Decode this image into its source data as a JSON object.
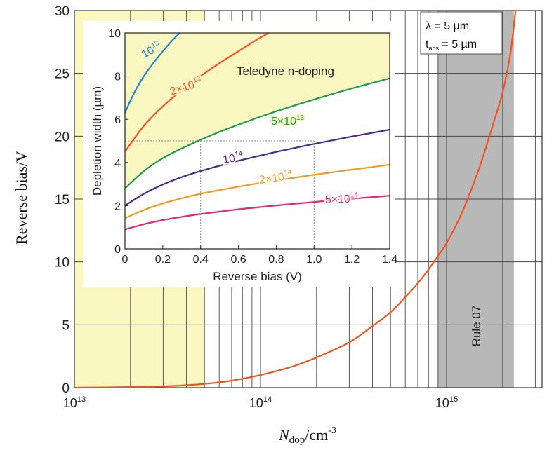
{
  "chart_data": [
    {
      "type": "line",
      "xlabel_main": "N",
      "xlabel_sub": "dop",
      "xlabel_unit": "/cm",
      "xlabel_sup": "-3",
      "ylabel": "Reverse bias/V",
      "xscale": "log",
      "xlim": [
        10000000000000.0,
        3500000000000000.0
      ],
      "ylim": [
        0,
        30
      ],
      "x_tick_labels": [
        {
          "x": 10000000000000.0,
          "base": "10",
          "exp": "13"
        },
        {
          "x": 100000000000000.0,
          "base": "10",
          "exp": "14"
        },
        {
          "x": 1000000000000000.0,
          "base": "10",
          "exp": "15"
        }
      ],
      "y_ticks": [
        0,
        5,
        10,
        15,
        20,
        25,
        30
      ],
      "grid": true,
      "legend_box": [
        "λ = 5 µm",
        "t",
        "abs",
        " = 5 µm"
      ],
      "shaded_regions": [
        {
          "label": "",
          "x_from": 10000000000000.0,
          "x_to": 50000000000000.0,
          "color": "#fbf7c0"
        },
        {
          "label": "Rule 07",
          "x_from": 900000000000000.0,
          "x_to": 2300000000000000.0,
          "color": "#b8b8b8"
        }
      ],
      "series": [
        {
          "color": "#f4511e",
          "x": [
            10000000000000.0,
            20000000000000.0,
            30000000000000.0,
            50000000000000.0,
            70000000000000.0,
            100000000000000.0,
            150000000000000.0,
            200000000000000.0,
            300000000000000.0,
            400000000000000.0,
            500000000000000.0,
            600000000000000.0,
            700000000000000.0,
            800000000000000.0,
            900000000000000.0,
            1000000000000000.0,
            1200000000000000.0,
            1500000000000000.0,
            1800000000000000.0,
            2000000000000000.0,
            2200000000000000.0,
            2350000000000000.0
          ],
          "y": [
            0.0,
            0.05,
            0.1,
            0.3,
            0.55,
            1.0,
            1.7,
            2.4,
            3.6,
            4.9,
            6.0,
            7.2,
            8.3,
            9.4,
            10.5,
            11.5,
            13.8,
            17.5,
            21.2,
            23.5,
            26.5,
            30
          ]
        }
      ]
    },
    {
      "type": "line",
      "title": "Teledyne n-doping",
      "xlabel": "Reverse bias (V)",
      "ylabel": "Depletion width (µm)",
      "xlim": [
        0,
        1.4
      ],
      "ylim": [
        0,
        10
      ],
      "x_ticks": [
        "0",
        "0.2",
        "0.4",
        "0.6",
        "0.8",
        "1.0",
        "1.2",
        "1.4"
      ],
      "y_ticks": [
        "0",
        "2",
        "4",
        "6",
        "8",
        "10"
      ],
      "reference_lines": {
        "x": [
          0.4,
          1.0
        ],
        "y": [
          5
        ]
      },
      "series": [
        {
          "name_base": "10",
          "name_exp": "13",
          "color": "#1e88c8",
          "x": [
            0,
            0.05,
            0.1,
            0.15,
            0.2,
            0.25,
            0.29
          ],
          "y": [
            6.3,
            7.25,
            8.0,
            8.6,
            9.15,
            9.65,
            10.0
          ]
        },
        {
          "name_base": "2×10",
          "name_exp": "13",
          "color": "#f4511e",
          "x": [
            0,
            0.1,
            0.2,
            0.3,
            0.4,
            0.5,
            0.6,
            0.7,
            0.76
          ],
          "y": [
            4.5,
            5.7,
            6.6,
            7.35,
            8.0,
            8.6,
            9.15,
            9.7,
            10.0
          ]
        },
        {
          "name_base": "5×10",
          "name_exp": "13",
          "color": "#1a9e4a",
          "x": [
            0,
            0.1,
            0.2,
            0.3,
            0.4,
            0.5,
            0.6,
            0.7,
            0.8,
            0.9,
            1.0,
            1.1,
            1.2,
            1.3,
            1.4
          ],
          "y": [
            2.8,
            3.6,
            4.2,
            4.65,
            5.05,
            5.42,
            5.75,
            6.07,
            6.37,
            6.65,
            6.92,
            7.18,
            7.43,
            7.67,
            7.9
          ]
        },
        {
          "name_base": "10",
          "name_exp": "14",
          "color": "#4b2a8c",
          "x": [
            0,
            0.1,
            0.2,
            0.3,
            0.4,
            0.5,
            0.6,
            0.7,
            0.8,
            0.9,
            1.0,
            1.1,
            1.2,
            1.3,
            1.4
          ],
          "y": [
            2.0,
            2.55,
            2.98,
            3.32,
            3.6,
            3.85,
            4.08,
            4.29,
            4.49,
            4.68,
            4.86,
            5.03,
            5.2,
            5.36,
            5.52
          ]
        },
        {
          "name_base": "2×10",
          "name_exp": "14",
          "color": "#f59a1c",
          "x": [
            0,
            0.1,
            0.2,
            0.3,
            0.4,
            0.5,
            0.6,
            0.7,
            0.8,
            0.9,
            1.0,
            1.1,
            1.2,
            1.3,
            1.4
          ],
          "y": [
            1.42,
            1.8,
            2.1,
            2.34,
            2.55,
            2.72,
            2.88,
            3.03,
            3.17,
            3.3,
            3.43,
            3.55,
            3.67,
            3.78,
            3.9
          ]
        },
        {
          "name_base": "5×10",
          "name_exp": "14",
          "color": "#e5296f",
          "x": [
            0,
            0.1,
            0.2,
            0.3,
            0.4,
            0.5,
            0.6,
            0.7,
            0.8,
            0.9,
            1.0,
            1.1,
            1.2,
            1.3,
            1.4
          ],
          "y": [
            0.9,
            1.14,
            1.33,
            1.48,
            1.61,
            1.72,
            1.83,
            1.92,
            2.01,
            2.09,
            2.17,
            2.25,
            2.32,
            2.39,
            2.46
          ]
        }
      ]
    }
  ]
}
